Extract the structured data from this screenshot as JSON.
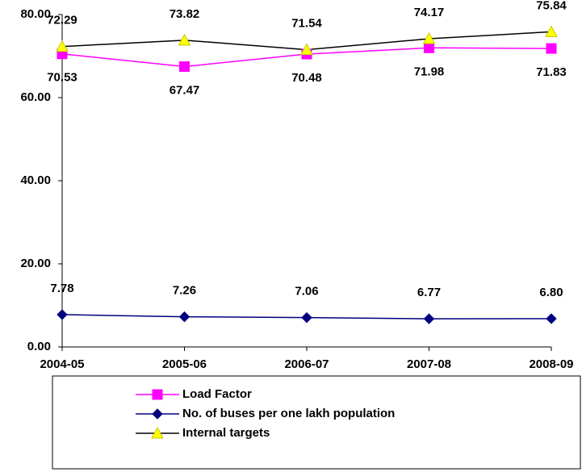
{
  "chart_data": {
    "type": "line",
    "categories": [
      "2004-05",
      "2005-06",
      "2006-07",
      "2007-08",
      "2008-09"
    ],
    "series": [
      {
        "name": "Load Factor",
        "color": "#ff00ff",
        "marker": "square",
        "line_color": "#ff00ff",
        "values": [
          70.53,
          67.47,
          70.48,
          71.98,
          71.83
        ],
        "value_labels": [
          "70.53",
          "67.47",
          "70.48",
          "71.98",
          "71.83"
        ]
      },
      {
        "name": "No. of buses per one lakh population",
        "color": "#000080",
        "marker": "diamond",
        "line_color": "#000080",
        "values": [
          7.78,
          7.26,
          7.06,
          6.77,
          6.8
        ],
        "value_labels": [
          "7.78",
          "7.26",
          "7.06",
          "6.77",
          "6.80"
        ]
      },
      {
        "name": "Internal targets",
        "color": "#ffff00",
        "marker": "triangle",
        "line_color": "#000000",
        "values": [
          72.29,
          73.82,
          71.54,
          74.17,
          75.84
        ],
        "value_labels": [
          "72.29",
          "73.82",
          "71.54",
          "74.17",
          "75.84"
        ]
      }
    ],
    "ylim": [
      0,
      80
    ],
    "yticks": [
      {
        "value": 0,
        "label": "0.00"
      },
      {
        "value": 20,
        "label": "20.00"
      },
      {
        "value": 40,
        "label": "40.00"
      },
      {
        "value": 60,
        "label": "60.00"
      },
      {
        "value": 80,
        "label": "80.00"
      }
    ],
    "grid": false
  }
}
